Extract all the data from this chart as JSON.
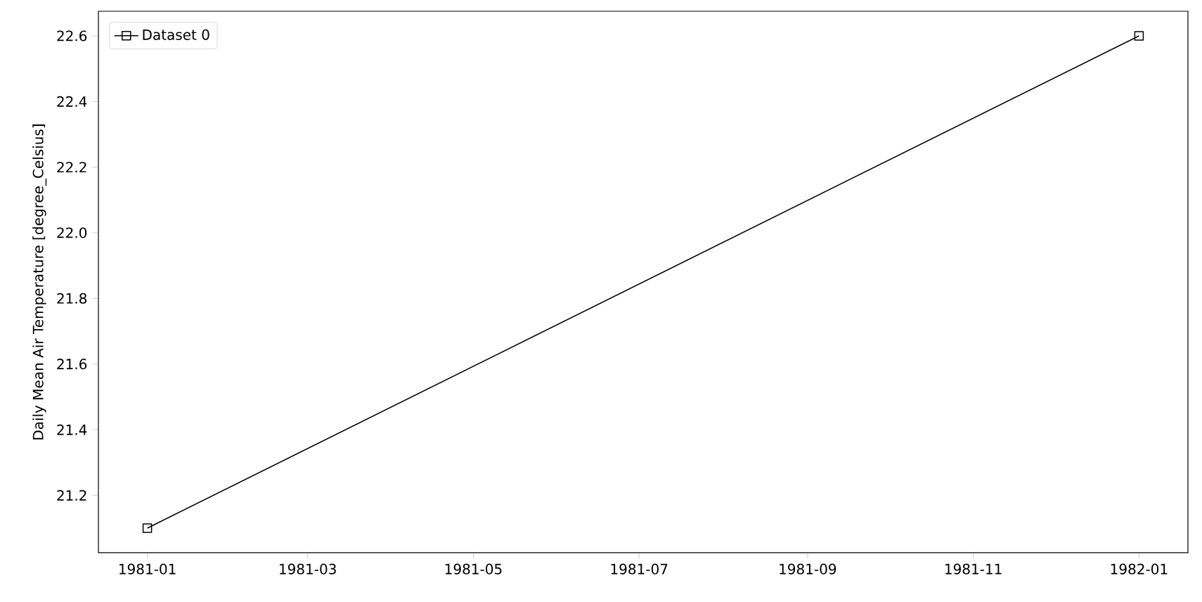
{
  "chart_data": {
    "type": "line",
    "ylabel": "Daily Mean Air Temperature [degree_Celsius]",
    "x": [
      "1981-01-01",
      "1982-01-01"
    ],
    "series": [
      {
        "name": "Dataset 0",
        "color": "#000000",
        "values": [
          21.1,
          22.6
        ]
      }
    ],
    "xlim": [
      "1980-12-14",
      "1982-01-19"
    ],
    "ylim": [
      21.025,
      22.675
    ],
    "xticks": [
      "1981-01",
      "1981-03",
      "1981-05",
      "1981-07",
      "1981-09",
      "1981-11",
      "1982-01"
    ],
    "yticks": [
      21.2,
      21.4,
      21.6,
      21.8,
      {
        "value": 22,
        "label": "22.0"
      },
      22.2,
      22.4,
      22.6
    ],
    "legend": "top left",
    "marker": "square",
    "line_style": "solid",
    "grid": false
  }
}
